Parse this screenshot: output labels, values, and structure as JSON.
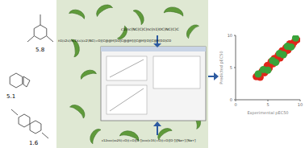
{
  "diagram": {
    "labels": [
      "5.1",
      "5.8",
      "1.6"
    ],
    "smiles": [
      "c1(nc(NC(C)C)nc(n1)OC)NC(C)C",
      "n1(c2c(nc1)cc(cc2)NC(=O)[C@@H]1O[C@@H]([C@H](O)[C@H]1O)CO",
      "c12ccc(cc2S(=O)(=O)[O-])ccc(c1S(=O)(=O)[O-])[Na+].[Na+]"
    ]
  },
  "chart_data": {
    "type": "scatter",
    "x_label": "Experimental pEC50",
    "y_label": "Predicted pEC50",
    "xlim": [
      0,
      10
    ],
    "ylim": [
      0,
      10
    ],
    "xticks": [
      0,
      5,
      10
    ],
    "yticks": [
      0,
      5,
      10
    ],
    "series": [
      {
        "color": "#e0261b",
        "marker": "circle",
        "x": [
          3.2,
          3.8,
          4.1,
          4.5,
          4.9,
          5.2,
          5.5,
          5.8,
          6.0,
          6.3,
          6.6,
          6.9,
          7.2,
          7.5,
          7.8,
          8.1,
          8.4,
          8.8,
          9.1,
          9.5
        ],
        "values": [
          3.6,
          3.5,
          4.4,
          4.2,
          5.3,
          4.9,
          5.9,
          5.6,
          6.4,
          6.0,
          6.9,
          6.5,
          7.6,
          7.2,
          8.1,
          7.7,
          8.7,
          8.5,
          9.0,
          9.3
        ]
      },
      {
        "color": "#3aa33a",
        "marker": "circle",
        "x": [
          3.5,
          4.3,
          5.0,
          5.7,
          6.2,
          6.8,
          7.4,
          8.0,
          8.6,
          9.3
        ],
        "values": [
          4.0,
          4.7,
          4.6,
          6.1,
          5.8,
          7.2,
          7.0,
          8.3,
          8.2,
          9.6
        ]
      }
    ]
  }
}
